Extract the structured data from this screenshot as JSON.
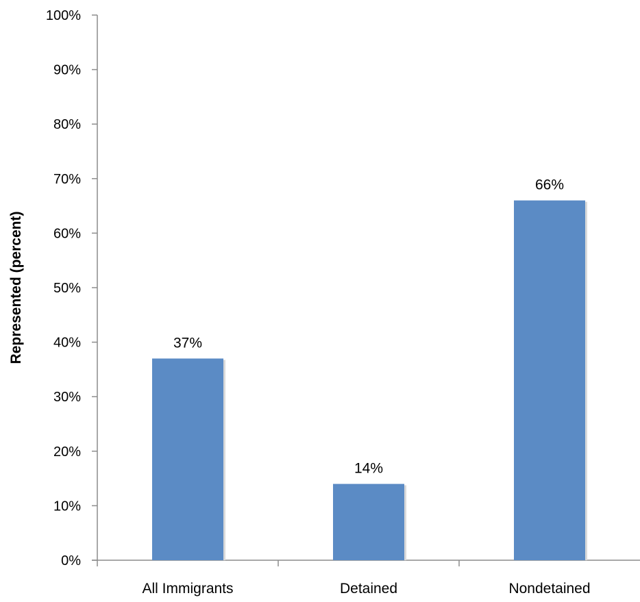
{
  "chart_data": {
    "type": "bar",
    "categories": [
      "All Immigrants",
      "Detained",
      "Nondetained"
    ],
    "values": [
      37,
      14,
      66
    ],
    "data_labels": [
      "37%",
      "14%",
      "66%"
    ],
    "title": "",
    "xlabel": "",
    "ylabel": "Represented (percent)",
    "ylim": [
      0,
      100
    ],
    "yticks": [
      0,
      10,
      20,
      30,
      40,
      50,
      60,
      70,
      80,
      90,
      100
    ],
    "ytick_labels": [
      "0%",
      "10%",
      "20%",
      "30%",
      "40%",
      "50%",
      "60%",
      "70%",
      "80%",
      "90%",
      "100%"
    ],
    "grid": false,
    "legend": "none",
    "bar_color": "#5b8bc5",
    "axis_color": "#8c8c8c"
  }
}
